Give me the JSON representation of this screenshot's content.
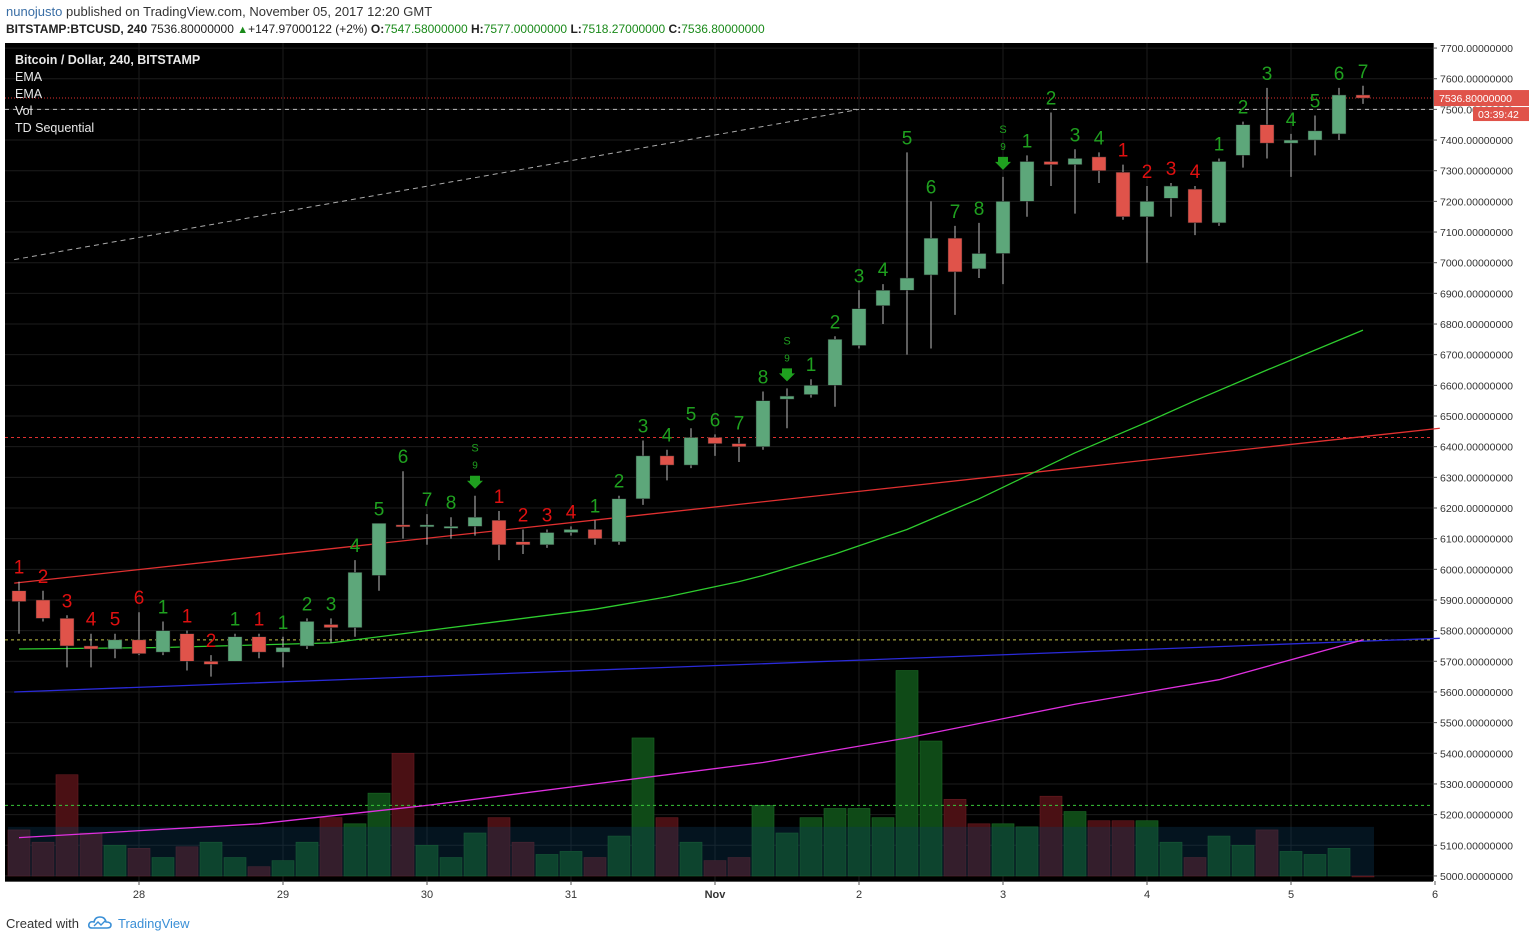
{
  "header": {
    "user": "nunojusto",
    "published": "published on TradingView.com, November 05, 2017 12:20 GMT",
    "symbol": "BITSTAMP:BTCUSD, 240",
    "price": "7536.80000000",
    "change": "+147.97000122 (+2%)",
    "o_label": "O:",
    "o_value": "7547.58000000",
    "h_label": "H:",
    "h_value": "7577.00000000",
    "l_label": "L:",
    "l_value": "7518.27000000",
    "c_label": "C:",
    "c_value": "7536.80000000"
  },
  "legend": [
    "Bitcoin / Dollar, 240, BITSTAMP",
    "EMA",
    "EMA",
    "Vol",
    "TD Sequential"
  ],
  "price_tag": "7536.80000000",
  "countdown": "03:39:42",
  "footer": {
    "created": "Created with",
    "brand": "TradingView"
  },
  "colors": {
    "bg": "#000000",
    "grid": "#1c1c1c",
    "up": "#5da77a",
    "down": "#e0534a",
    "td_up": "#1fa01f",
    "td_down": "#e01010",
    "ema_fast": "#2ecc2e",
    "ema_red": "#e03030",
    "ema_blue": "#2a2ad8",
    "ema_magenta": "#e030e0",
    "vol_up": "#0f4a17",
    "vol_down": "#4a1014"
  },
  "chart_data": {
    "type": "candlestick",
    "y_ticks": [
      "7700.00000000",
      "7600.00000000",
      "7500.00000000",
      "7400.00000000",
      "7300.00000000",
      "7200.00000000",
      "7100.00000000",
      "7000.00000000",
      "6900.00000000",
      "6800.00000000",
      "6700.00000000",
      "6600.00000000",
      "6500.00000000",
      "6400.00000000",
      "6300.00000000",
      "6200.00000000",
      "6100.00000000",
      "6000.00000000",
      "5900.00000000",
      "5800.00000000",
      "5700.00000000",
      "5600.00000000",
      "5500.00000000",
      "5400.00000000",
      "5300.00000000",
      "5200.00000000",
      "5100.00000000",
      "5000.00000000"
    ],
    "y_range": [
      4990,
      7710
    ],
    "x_ticks": [
      {
        "label": "28",
        "idx": 5
      },
      {
        "label": "29",
        "idx": 11
      },
      {
        "label": "30",
        "idx": 17
      },
      {
        "label": "31",
        "idx": 23
      },
      {
        "label": "Nov",
        "idx": 29
      },
      {
        "label": "2",
        "idx": 35
      },
      {
        "label": "3",
        "idx": 41
      },
      {
        "label": "4",
        "idx": 47
      },
      {
        "label": "5",
        "idx": 53
      },
      {
        "label": "6",
        "idx": 59
      }
    ],
    "candles": [
      {
        "o": 5930,
        "h": 5960,
        "l": 5790,
        "c": 5895
      },
      {
        "o": 5900,
        "h": 5930,
        "l": 5830,
        "c": 5840
      },
      {
        "o": 5840,
        "h": 5850,
        "l": 5680,
        "c": 5750
      },
      {
        "o": 5750,
        "h": 5790,
        "l": 5680,
        "c": 5740
      },
      {
        "o": 5740,
        "h": 5790,
        "l": 5710,
        "c": 5770
      },
      {
        "o": 5770,
        "h": 5860,
        "l": 5720,
        "c": 5725
      },
      {
        "o": 5730,
        "h": 5830,
        "l": 5720,
        "c": 5800
      },
      {
        "o": 5790,
        "h": 5800,
        "l": 5670,
        "c": 5700
      },
      {
        "o": 5700,
        "h": 5720,
        "l": 5650,
        "c": 5690
      },
      {
        "o": 5700,
        "h": 5790,
        "l": 5700,
        "c": 5780
      },
      {
        "o": 5780,
        "h": 5790,
        "l": 5710,
        "c": 5730
      },
      {
        "o": 5730,
        "h": 5780,
        "l": 5680,
        "c": 5745
      },
      {
        "o": 5750,
        "h": 5840,
        "l": 5740,
        "c": 5830
      },
      {
        "o": 5820,
        "h": 5840,
        "l": 5760,
        "c": 5810
      },
      {
        "o": 5810,
        "h": 6030,
        "l": 5780,
        "c": 5990
      },
      {
        "o": 5980,
        "h": 6150,
        "l": 5930,
        "c": 6150
      },
      {
        "o": 6145,
        "h": 6320,
        "l": 6100,
        "c": 6140
      },
      {
        "o": 6140,
        "h": 6180,
        "l": 6080,
        "c": 6145
      },
      {
        "o": 6140,
        "h": 6170,
        "l": 6100,
        "c": 6140
      },
      {
        "o": 6140,
        "h": 6240,
        "l": 6110,
        "c": 6170
      },
      {
        "o": 6160,
        "h": 6190,
        "l": 6030,
        "c": 6080
      },
      {
        "o": 6090,
        "h": 6130,
        "l": 6050,
        "c": 6080
      },
      {
        "o": 6080,
        "h": 6130,
        "l": 6070,
        "c": 6120
      },
      {
        "o": 6120,
        "h": 6140,
        "l": 6110,
        "c": 6130
      },
      {
        "o": 6130,
        "h": 6160,
        "l": 6080,
        "c": 6100
      },
      {
        "o": 6090,
        "h": 6240,
        "l": 6080,
        "c": 6230
      },
      {
        "o": 6230,
        "h": 6420,
        "l": 6210,
        "c": 6370
      },
      {
        "o": 6370,
        "h": 6390,
        "l": 6290,
        "c": 6340
      },
      {
        "o": 6340,
        "h": 6460,
        "l": 6330,
        "c": 6430
      },
      {
        "o": 6430,
        "h": 6440,
        "l": 6370,
        "c": 6410
      },
      {
        "o": 6410,
        "h": 6430,
        "l": 6350,
        "c": 6400
      },
      {
        "o": 6400,
        "h": 6580,
        "l": 6390,
        "c": 6550
      },
      {
        "o": 6555,
        "h": 6590,
        "l": 6460,
        "c": 6565
      },
      {
        "o": 6570,
        "h": 6620,
        "l": 6560,
        "c": 6600
      },
      {
        "o": 6600,
        "h": 6760,
        "l": 6530,
        "c": 6750
      },
      {
        "o": 6730,
        "h": 6910,
        "l": 6720,
        "c": 6850
      },
      {
        "o": 6860,
        "h": 6930,
        "l": 6800,
        "c": 6910
      },
      {
        "o": 6910,
        "h": 7360,
        "l": 6700,
        "c": 6950
      },
      {
        "o": 6960,
        "h": 7200,
        "l": 6720,
        "c": 7080
      },
      {
        "o": 7080,
        "h": 7120,
        "l": 6830,
        "c": 6970
      },
      {
        "o": 6980,
        "h": 7130,
        "l": 6950,
        "c": 7030
      },
      {
        "o": 7030,
        "h": 7280,
        "l": 6930,
        "c": 7200
      },
      {
        "o": 7200,
        "h": 7350,
        "l": 7150,
        "c": 7330
      },
      {
        "o": 7330,
        "h": 7490,
        "l": 7250,
        "c": 7320
      },
      {
        "o": 7320,
        "h": 7370,
        "l": 7160,
        "c": 7340
      },
      {
        "o": 7345,
        "h": 7360,
        "l": 7260,
        "c": 7300
      },
      {
        "o": 7295,
        "h": 7320,
        "l": 7140,
        "c": 7150
      },
      {
        "o": 7150,
        "h": 7250,
        "l": 7000,
        "c": 7200
      },
      {
        "o": 7210,
        "h": 7260,
        "l": 7150,
        "c": 7250
      },
      {
        "o": 7240,
        "h": 7250,
        "l": 7090,
        "c": 7130
      },
      {
        "o": 7130,
        "h": 7340,
        "l": 7120,
        "c": 7330
      },
      {
        "o": 7350,
        "h": 7460,
        "l": 7310,
        "c": 7450
      },
      {
        "o": 7450,
        "h": 7570,
        "l": 7340,
        "c": 7390
      },
      {
        "o": 7390,
        "h": 7420,
        "l": 7280,
        "c": 7400
      },
      {
        "o": 7400,
        "h": 7480,
        "l": 7350,
        "c": 7430
      },
      {
        "o": 7420,
        "h": 7570,
        "l": 7400,
        "c": 7547
      },
      {
        "o": 7547,
        "h": 7577,
        "l": 7518,
        "c": 7537
      }
    ],
    "volumes": [
      {
        "v": 5150,
        "up": false
      },
      {
        "v": 5110,
        "up": false
      },
      {
        "v": 5330,
        "up": false
      },
      {
        "v": 5140,
        "up": false
      },
      {
        "v": 5100,
        "up": true
      },
      {
        "v": 5090,
        "up": false
      },
      {
        "v": 5060,
        "up": true
      },
      {
        "v": 5095,
        "up": false
      },
      {
        "v": 5110,
        "up": true
      },
      {
        "v": 5060,
        "up": true
      },
      {
        "v": 5030,
        "up": false
      },
      {
        "v": 5050,
        "up": true
      },
      {
        "v": 5110,
        "up": true
      },
      {
        "v": 5190,
        "up": false
      },
      {
        "v": 5170,
        "up": true
      },
      {
        "v": 5270,
        "up": true
      },
      {
        "v": 5400,
        "up": false
      },
      {
        "v": 5100,
        "up": true
      },
      {
        "v": 5060,
        "up": true
      },
      {
        "v": 5140,
        "up": true
      },
      {
        "v": 5190,
        "up": false
      },
      {
        "v": 5110,
        "up": false
      },
      {
        "v": 5070,
        "up": true
      },
      {
        "v": 5080,
        "up": true
      },
      {
        "v": 5060,
        "up": false
      },
      {
        "v": 5130,
        "up": true
      },
      {
        "v": 5450,
        "up": true
      },
      {
        "v": 5190,
        "up": false
      },
      {
        "v": 5110,
        "up": true
      },
      {
        "v": 5050,
        "up": false
      },
      {
        "v": 5060,
        "up": false
      },
      {
        "v": 5230,
        "up": true
      },
      {
        "v": 5140,
        "up": true
      },
      {
        "v": 5190,
        "up": true
      },
      {
        "v": 5220,
        "up": true
      },
      {
        "v": 5220,
        "up": true
      },
      {
        "v": 5190,
        "up": true
      },
      {
        "v": 5670,
        "up": true
      },
      {
        "v": 5440,
        "up": true
      },
      {
        "v": 5250,
        "up": false
      },
      {
        "v": 5170,
        "up": false
      },
      {
        "v": 5170,
        "up": true
      },
      {
        "v": 5160,
        "up": true
      },
      {
        "v": 5260,
        "up": false
      },
      {
        "v": 5210,
        "up": true
      },
      {
        "v": 5180,
        "up": false
      },
      {
        "v": 5180,
        "up": false
      },
      {
        "v": 5180,
        "up": true
      },
      {
        "v": 5110,
        "up": true
      },
      {
        "v": 5060,
        "up": false
      },
      {
        "v": 5130,
        "up": true
      },
      {
        "v": 5100,
        "up": true
      },
      {
        "v": 5150,
        "up": false
      },
      {
        "v": 5080,
        "up": true
      },
      {
        "v": 5070,
        "up": true
      },
      {
        "v": 5090,
        "up": true
      },
      {
        "v": 5000,
        "up": false
      }
    ],
    "td_labels": [
      {
        "idx": 0,
        "t": "1",
        "up": false
      },
      {
        "idx": 1,
        "t": "2",
        "up": false
      },
      {
        "idx": 2,
        "t": "3",
        "up": false
      },
      {
        "idx": 3,
        "t": "4",
        "up": false
      },
      {
        "idx": 4,
        "t": "5",
        "up": false
      },
      {
        "idx": 5,
        "t": "6",
        "up": false
      },
      {
        "idx": 6,
        "t": "1",
        "up": true
      },
      {
        "idx": 7,
        "t": "1",
        "up": false
      },
      {
        "idx": 8,
        "t": "2",
        "up": false
      },
      {
        "idx": 9,
        "t": "1",
        "up": true
      },
      {
        "idx": 10,
        "t": "1",
        "up": false
      },
      {
        "idx": 11,
        "t": "1",
        "up": true
      },
      {
        "idx": 12,
        "t": "2",
        "up": true
      },
      {
        "idx": 13,
        "t": "3",
        "up": true
      },
      {
        "idx": 14,
        "t": "4",
        "up": true
      },
      {
        "idx": 15,
        "t": "5",
        "up": true
      },
      {
        "idx": 16,
        "t": "6",
        "up": true
      },
      {
        "idx": 17,
        "t": "7",
        "up": true
      },
      {
        "idx": 18,
        "t": "8",
        "up": true
      },
      {
        "idx": 20,
        "t": "1",
        "up": false
      },
      {
        "idx": 21,
        "t": "2",
        "up": false
      },
      {
        "idx": 22,
        "t": "3",
        "up": false
      },
      {
        "idx": 23,
        "t": "4",
        "up": false
      },
      {
        "idx": 24,
        "t": "1",
        "up": true
      },
      {
        "idx": 25,
        "t": "2",
        "up": true
      },
      {
        "idx": 26,
        "t": "3",
        "up": true
      },
      {
        "idx": 27,
        "t": "4",
        "up": true
      },
      {
        "idx": 28,
        "t": "5",
        "up": true
      },
      {
        "idx": 29,
        "t": "6",
        "up": true
      },
      {
        "idx": 30,
        "t": "7",
        "up": true
      },
      {
        "idx": 31,
        "t": "8",
        "up": true
      },
      {
        "idx": 33,
        "t": "1",
        "up": true
      },
      {
        "idx": 34,
        "t": "2",
        "up": true
      },
      {
        "idx": 35,
        "t": "3",
        "up": true
      },
      {
        "idx": 36,
        "t": "4",
        "up": true
      },
      {
        "idx": 37,
        "t": "5",
        "up": true
      },
      {
        "idx": 38,
        "t": "6",
        "up": true
      },
      {
        "idx": 39,
        "t": "7",
        "up": true
      },
      {
        "idx": 40,
        "t": "8",
        "up": true
      },
      {
        "idx": 42,
        "t": "1",
        "up": true
      },
      {
        "idx": 43,
        "t": "2",
        "up": true
      },
      {
        "idx": 44,
        "t": "3",
        "up": true
      },
      {
        "idx": 45,
        "t": "4",
        "up": true
      },
      {
        "idx": 46,
        "t": "1",
        "up": false
      },
      {
        "idx": 47,
        "t": "2",
        "up": false
      },
      {
        "idx": 48,
        "t": "3",
        "up": false
      },
      {
        "idx": 49,
        "t": "4",
        "up": false
      },
      {
        "idx": 50,
        "t": "1",
        "up": true
      },
      {
        "idx": 51,
        "t": "2",
        "up": true
      },
      {
        "idx": 52,
        "t": "3",
        "up": true
      },
      {
        "idx": 53,
        "t": "4",
        "up": true
      },
      {
        "idx": 54,
        "t": "5",
        "up": true
      },
      {
        "idx": 55,
        "t": "6",
        "up": true
      },
      {
        "idx": 56,
        "t": "7",
        "up": true
      }
    ],
    "sell_signals": [
      {
        "idx": 19,
        "s": "S",
        "n": "9"
      },
      {
        "idx": 32,
        "s": "S",
        "n": "9"
      },
      {
        "idx": 41,
        "s": "S",
        "n": "9"
      }
    ],
    "ema_fast": [
      {
        "i": 0,
        "v": 5740
      },
      {
        "i": 6,
        "v": 5745
      },
      {
        "i": 13,
        "v": 5760
      },
      {
        "i": 17,
        "v": 5800
      },
      {
        "i": 20,
        "v": 5830
      },
      {
        "i": 24,
        "v": 5870
      },
      {
        "i": 27,
        "v": 5910
      },
      {
        "i": 30,
        "v": 5960
      },
      {
        "i": 31,
        "v": 5980
      },
      {
        "i": 34,
        "v": 6050
      },
      {
        "i": 37,
        "v": 6130
      },
      {
        "i": 40,
        "v": 6230
      },
      {
        "i": 44,
        "v": 6380
      },
      {
        "i": 47,
        "v": 6480
      },
      {
        "i": 49,
        "v": 6550
      },
      {
        "i": 52,
        "v": 6650
      },
      {
        "i": 56,
        "v": 6780
      }
    ],
    "ema_red": [
      {
        "i": -0.2,
        "v": 5955
      },
      {
        "i": 59.2,
        "v": 6460
      }
    ],
    "ema_blue": [
      {
        "i": -0.2,
        "v": 5600
      },
      {
        "i": 59.2,
        "v": 5775
      }
    ],
    "ema_magenta": [
      {
        "i": 0,
        "v": 5125
      },
      {
        "i": 10,
        "v": 5170
      },
      {
        "i": 17,
        "v": 5230
      },
      {
        "i": 25,
        "v": 5310
      },
      {
        "i": 31,
        "v": 5370
      },
      {
        "i": 37,
        "v": 5450
      },
      {
        "i": 44,
        "v": 5560
      },
      {
        "i": 50,
        "v": 5640
      },
      {
        "i": 56,
        "v": 5770
      }
    ],
    "hlines": [
      {
        "v": 6430,
        "color": "#e03030",
        "dash": "3,3"
      },
      {
        "v": 5770,
        "color": "#c8c84a",
        "dash": "3,3"
      },
      {
        "v": 5230,
        "color": "#3ac83a",
        "dash": "3,3"
      },
      {
        "v": 7537,
        "color": "#e03030",
        "dash": "1,2"
      },
      {
        "v": 7500,
        "color": "#bbbbbb",
        "dash": "4,4"
      }
    ],
    "trendline": [
      {
        "i": -0.2,
        "v": 7010
      },
      {
        "i": 35,
        "v": 7500
      }
    ]
  }
}
